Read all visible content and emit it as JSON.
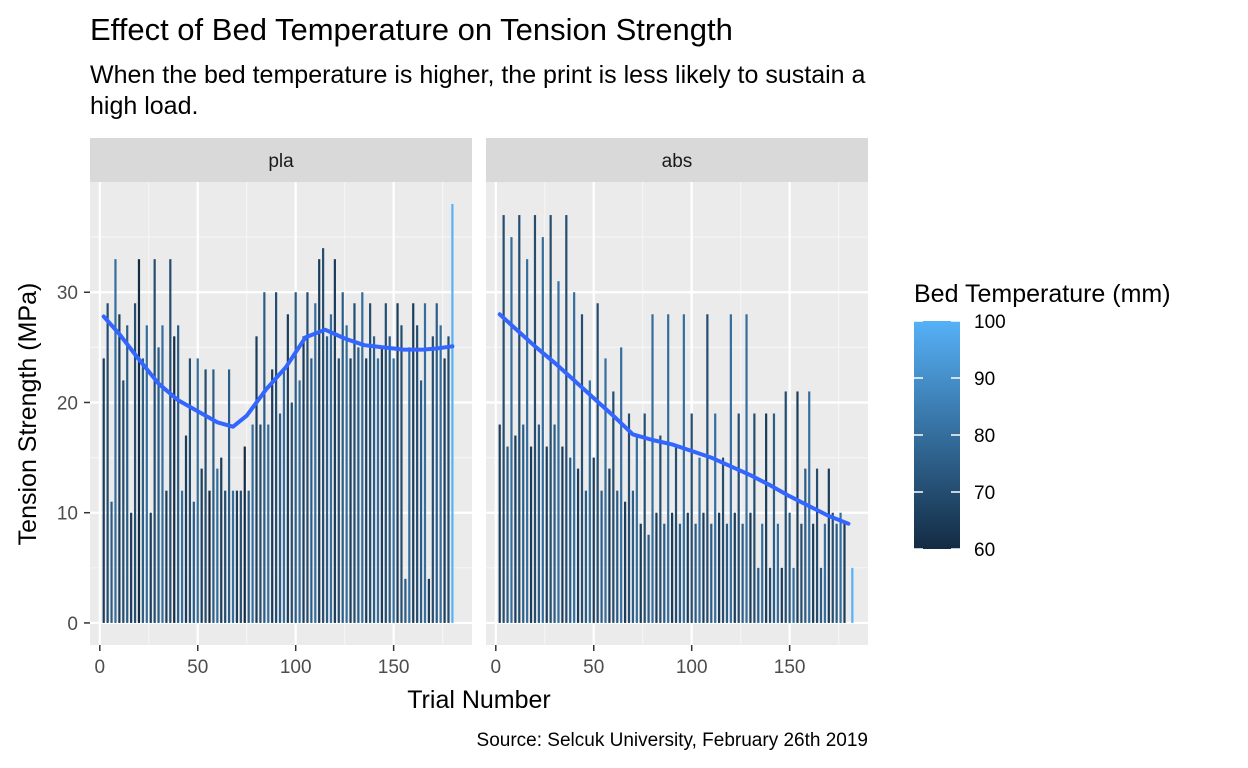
{
  "chart_data": {
    "type": "bar",
    "title": "Effect of Bed Temperature on Tension Strength",
    "subtitle": "When the bed temperature is higher, the print is less likely to sustain a high load.",
    "caption": "Source: Selcuk University, February 26th 2019",
    "xlabel": "Trial Number",
    "ylabel": "Tension Strength (MPa)",
    "xlim": [
      -5,
      190
    ],
    "ylim": [
      -2,
      40
    ],
    "x_ticks": [
      0,
      50,
      100,
      150
    ],
    "y_ticks": [
      0,
      10,
      20,
      30
    ],
    "grid": true,
    "legend": {
      "title": "Bed Temperature (mm)",
      "placement": "right",
      "range": [
        60,
        100
      ],
      "ticks": [
        60,
        70,
        80,
        90,
        100
      ],
      "color_low": "#132B43",
      "color_high": "#56B1F7"
    },
    "smooth_color": "#3366FF",
    "panels": [
      {
        "label": "pla",
        "bars": [
          {
            "x": 2,
            "y": 24,
            "t": 65
          },
          {
            "x": 4,
            "y": 29,
            "t": 70
          },
          {
            "x": 6,
            "y": 11,
            "t": 75
          },
          {
            "x": 8,
            "y": 33,
            "t": 80
          },
          {
            "x": 10,
            "y": 28,
            "t": 65
          },
          {
            "x": 12,
            "y": 22,
            "t": 70
          },
          {
            "x": 14,
            "y": 27,
            "t": 75
          },
          {
            "x": 16,
            "y": 10,
            "t": 65
          },
          {
            "x": 18,
            "y": 29,
            "t": 70
          },
          {
            "x": 20,
            "y": 33,
            "t": 60
          },
          {
            "x": 22,
            "y": 24,
            "t": 75
          },
          {
            "x": 24,
            "y": 27,
            "t": 80
          },
          {
            "x": 26,
            "y": 10,
            "t": 65
          },
          {
            "x": 28,
            "y": 33,
            "t": 70
          },
          {
            "x": 30,
            "y": 25,
            "t": 75
          },
          {
            "x": 32,
            "y": 27,
            "t": 80
          },
          {
            "x": 34,
            "y": 12,
            "t": 65
          },
          {
            "x": 36,
            "y": 33,
            "t": 70
          },
          {
            "x": 38,
            "y": 26,
            "t": 60
          },
          {
            "x": 40,
            "y": 27,
            "t": 75
          },
          {
            "x": 42,
            "y": 12,
            "t": 80
          },
          {
            "x": 44,
            "y": 17,
            "t": 65
          },
          {
            "x": 46,
            "y": 24,
            "t": 70
          },
          {
            "x": 48,
            "y": 11,
            "t": 75
          },
          {
            "x": 50,
            "y": 24,
            "t": 80
          },
          {
            "x": 52,
            "y": 14,
            "t": 65
          },
          {
            "x": 54,
            "y": 23,
            "t": 70
          },
          {
            "x": 56,
            "y": 12,
            "t": 60
          },
          {
            "x": 58,
            "y": 23,
            "t": 75
          },
          {
            "x": 60,
            "y": 14,
            "t": 80
          },
          {
            "x": 62,
            "y": 15,
            "t": 65
          },
          {
            "x": 64,
            "y": 12,
            "t": 70
          },
          {
            "x": 66,
            "y": 23,
            "t": 75
          },
          {
            "x": 68,
            "y": 12,
            "t": 80
          },
          {
            "x": 70,
            "y": 12,
            "t": 65
          },
          {
            "x": 72,
            "y": 12,
            "t": 70
          },
          {
            "x": 74,
            "y": 16,
            "t": 60
          },
          {
            "x": 76,
            "y": 12,
            "t": 75
          },
          {
            "x": 78,
            "y": 18,
            "t": 80
          },
          {
            "x": 80,
            "y": 26,
            "t": 65
          },
          {
            "x": 82,
            "y": 18,
            "t": 70
          },
          {
            "x": 84,
            "y": 30,
            "t": 75
          },
          {
            "x": 86,
            "y": 18,
            "t": 80
          },
          {
            "x": 88,
            "y": 23,
            "t": 65
          },
          {
            "x": 90,
            "y": 30,
            "t": 70
          },
          {
            "x": 92,
            "y": 19,
            "t": 75
          },
          {
            "x": 94,
            "y": 23,
            "t": 80
          },
          {
            "x": 96,
            "y": 28,
            "t": 65
          },
          {
            "x": 98,
            "y": 20,
            "t": 70
          },
          {
            "x": 100,
            "y": 30,
            "t": 75
          },
          {
            "x": 102,
            "y": 22,
            "t": 80
          },
          {
            "x": 104,
            "y": 26,
            "t": 65
          },
          {
            "x": 106,
            "y": 30,
            "t": 70
          },
          {
            "x": 108,
            "y": 24,
            "t": 75
          },
          {
            "x": 110,
            "y": 29,
            "t": 80
          },
          {
            "x": 112,
            "y": 33,
            "t": 65
          },
          {
            "x": 114,
            "y": 34,
            "t": 70
          },
          {
            "x": 116,
            "y": 26,
            "t": 75
          },
          {
            "x": 118,
            "y": 28,
            "t": 80
          },
          {
            "x": 120,
            "y": 33,
            "t": 65
          },
          {
            "x": 122,
            "y": 24,
            "t": 70
          },
          {
            "x": 124,
            "y": 30,
            "t": 75
          },
          {
            "x": 126,
            "y": 27,
            "t": 80
          },
          {
            "x": 128,
            "y": 24,
            "t": 65
          },
          {
            "x": 130,
            "y": 29,
            "t": 70
          },
          {
            "x": 132,
            "y": 25,
            "t": 75
          },
          {
            "x": 134,
            "y": 30,
            "t": 80
          },
          {
            "x": 136,
            "y": 24,
            "t": 65
          },
          {
            "x": 138,
            "y": 29,
            "t": 70
          },
          {
            "x": 140,
            "y": 26,
            "t": 75
          },
          {
            "x": 142,
            "y": 24,
            "t": 80
          },
          {
            "x": 144,
            "y": 25,
            "t": 65
          },
          {
            "x": 146,
            "y": 29,
            "t": 70
          },
          {
            "x": 148,
            "y": 26,
            "t": 75
          },
          {
            "x": 150,
            "y": 24,
            "t": 80
          },
          {
            "x": 152,
            "y": 29,
            "t": 65
          },
          {
            "x": 154,
            "y": 27,
            "t": 70
          },
          {
            "x": 156,
            "y": 4,
            "t": 75
          },
          {
            "x": 158,
            "y": 25,
            "t": 80
          },
          {
            "x": 160,
            "y": 29,
            "t": 65
          },
          {
            "x": 162,
            "y": 27,
            "t": 70
          },
          {
            "x": 164,
            "y": 22,
            "t": 75
          },
          {
            "x": 166,
            "y": 29,
            "t": 80
          },
          {
            "x": 168,
            "y": 4,
            "t": 65
          },
          {
            "x": 170,
            "y": 26,
            "t": 70
          },
          {
            "x": 172,
            "y": 29,
            "t": 75
          },
          {
            "x": 174,
            "y": 27,
            "t": 80
          },
          {
            "x": 176,
            "y": 24,
            "t": 65
          },
          {
            "x": 178,
            "y": 26,
            "t": 70
          },
          {
            "x": 180,
            "y": 38,
            "t": 100
          }
        ],
        "smooth": [
          {
            "x": 2,
            "y": 27.8
          },
          {
            "x": 10,
            "y": 26.2
          },
          {
            "x": 20,
            "y": 23.9
          },
          {
            "x": 30,
            "y": 21.7
          },
          {
            "x": 40,
            "y": 20.2
          },
          {
            "x": 50,
            "y": 19.2
          },
          {
            "x": 60,
            "y": 18.2
          },
          {
            "x": 68,
            "y": 17.8
          },
          {
            "x": 75,
            "y": 18.8
          },
          {
            "x": 85,
            "y": 21.2
          },
          {
            "x": 95,
            "y": 23.2
          },
          {
            "x": 105,
            "y": 25.9
          },
          {
            "x": 115,
            "y": 26.6
          },
          {
            "x": 125,
            "y": 25.8
          },
          {
            "x": 135,
            "y": 25.2
          },
          {
            "x": 145,
            "y": 25.0
          },
          {
            "x": 155,
            "y": 24.8
          },
          {
            "x": 165,
            "y": 24.8
          },
          {
            "x": 172,
            "y": 24.9
          },
          {
            "x": 180,
            "y": 25.1
          }
        ]
      },
      {
        "label": "abs",
        "bars": [
          {
            "x": 2,
            "y": 18,
            "t": 65
          },
          {
            "x": 4,
            "y": 37,
            "t": 70
          },
          {
            "x": 6,
            "y": 16,
            "t": 75
          },
          {
            "x": 8,
            "y": 35,
            "t": 80
          },
          {
            "x": 10,
            "y": 17,
            "t": 65
          },
          {
            "x": 12,
            "y": 37,
            "t": 70
          },
          {
            "x": 14,
            "y": 18,
            "t": 75
          },
          {
            "x": 16,
            "y": 33,
            "t": 80
          },
          {
            "x": 18,
            "y": 16,
            "t": 65
          },
          {
            "x": 20,
            "y": 37,
            "t": 70
          },
          {
            "x": 22,
            "y": 18,
            "t": 75
          },
          {
            "x": 24,
            "y": 35,
            "t": 80
          },
          {
            "x": 26,
            "y": 16,
            "t": 65
          },
          {
            "x": 28,
            "y": 37,
            "t": 70
          },
          {
            "x": 30,
            "y": 18,
            "t": 75
          },
          {
            "x": 32,
            "y": 31,
            "t": 80
          },
          {
            "x": 34,
            "y": 16,
            "t": 65
          },
          {
            "x": 36,
            "y": 37,
            "t": 70
          },
          {
            "x": 38,
            "y": 15,
            "t": 75
          },
          {
            "x": 40,
            "y": 30,
            "t": 80
          },
          {
            "x": 42,
            "y": 14,
            "t": 65
          },
          {
            "x": 44,
            "y": 28,
            "t": 70
          },
          {
            "x": 46,
            "y": 12,
            "t": 75
          },
          {
            "x": 48,
            "y": 22,
            "t": 80
          },
          {
            "x": 50,
            "y": 15,
            "t": 65
          },
          {
            "x": 52,
            "y": 29,
            "t": 70
          },
          {
            "x": 54,
            "y": 12,
            "t": 75
          },
          {
            "x": 56,
            "y": 24,
            "t": 80
          },
          {
            "x": 58,
            "y": 14,
            "t": 65
          },
          {
            "x": 60,
            "y": 21,
            "t": 70
          },
          {
            "x": 62,
            "y": 12,
            "t": 75
          },
          {
            "x": 64,
            "y": 25,
            "t": 80
          },
          {
            "x": 66,
            "y": 11,
            "t": 65
          },
          {
            "x": 68,
            "y": 19,
            "t": 70
          },
          {
            "x": 70,
            "y": 12,
            "t": 75
          },
          {
            "x": 72,
            "y": 17,
            "t": 80
          },
          {
            "x": 74,
            "y": 9,
            "t": 65
          },
          {
            "x": 76,
            "y": 19,
            "t": 70
          },
          {
            "x": 78,
            "y": 8,
            "t": 75
          },
          {
            "x": 80,
            "y": 28,
            "t": 80
          },
          {
            "x": 82,
            "y": 10,
            "t": 65
          },
          {
            "x": 84,
            "y": 17,
            "t": 70
          },
          {
            "x": 86,
            "y": 9,
            "t": 75
          },
          {
            "x": 88,
            "y": 28,
            "t": 80
          },
          {
            "x": 90,
            "y": 10,
            "t": 65
          },
          {
            "x": 92,
            "y": 16,
            "t": 70
          },
          {
            "x": 94,
            "y": 9,
            "t": 75
          },
          {
            "x": 96,
            "y": 28,
            "t": 80
          },
          {
            "x": 98,
            "y": 10,
            "t": 65
          },
          {
            "x": 100,
            "y": 19,
            "t": 70
          },
          {
            "x": 102,
            "y": 9,
            "t": 75
          },
          {
            "x": 104,
            "y": 15,
            "t": 80
          },
          {
            "x": 106,
            "y": 10,
            "t": 65
          },
          {
            "x": 108,
            "y": 28,
            "t": 70
          },
          {
            "x": 110,
            "y": 9,
            "t": 75
          },
          {
            "x": 112,
            "y": 19,
            "t": 80
          },
          {
            "x": 114,
            "y": 10,
            "t": 65
          },
          {
            "x": 116,
            "y": 15,
            "t": 70
          },
          {
            "x": 118,
            "y": 9,
            "t": 75
          },
          {
            "x": 120,
            "y": 28,
            "t": 80
          },
          {
            "x": 122,
            "y": 10,
            "t": 65
          },
          {
            "x": 124,
            "y": 19,
            "t": 70
          },
          {
            "x": 126,
            "y": 9,
            "t": 75
          },
          {
            "x": 128,
            "y": 28,
            "t": 80
          },
          {
            "x": 130,
            "y": 10,
            "t": 65
          },
          {
            "x": 132,
            "y": 19,
            "t": 70
          },
          {
            "x": 134,
            "y": 5,
            "t": 75
          },
          {
            "x": 136,
            "y": 9,
            "t": 80
          },
          {
            "x": 138,
            "y": 19,
            "t": 65
          },
          {
            "x": 140,
            "y": 5,
            "t": 70
          },
          {
            "x": 142,
            "y": 19,
            "t": 75
          },
          {
            "x": 144,
            "y": 9,
            "t": 80
          },
          {
            "x": 146,
            "y": 5,
            "t": 65
          },
          {
            "x": 148,
            "y": 21,
            "t": 70
          },
          {
            "x": 150,
            "y": 10,
            "t": 75
          },
          {
            "x": 152,
            "y": 5,
            "t": 80
          },
          {
            "x": 154,
            "y": 21,
            "t": 65
          },
          {
            "x": 156,
            "y": 9,
            "t": 70
          },
          {
            "x": 158,
            "y": 14,
            "t": 75
          },
          {
            "x": 160,
            "y": 21,
            "t": 80
          },
          {
            "x": 162,
            "y": 9,
            "t": 65
          },
          {
            "x": 164,
            "y": 14,
            "t": 70
          },
          {
            "x": 166,
            "y": 5,
            "t": 75
          },
          {
            "x": 168,
            "y": 9,
            "t": 80
          },
          {
            "x": 170,
            "y": 14,
            "t": 65
          },
          {
            "x": 172,
            "y": 10,
            "t": 70
          },
          {
            "x": 174,
            "y": 9,
            "t": 75
          },
          {
            "x": 176,
            "y": 10,
            "t": 80
          },
          {
            "x": 178,
            "y": 9,
            "t": 65
          },
          {
            "x": 182,
            "y": 5,
            "t": 100
          }
        ],
        "smooth": [
          {
            "x": 2,
            "y": 28.0
          },
          {
            "x": 10,
            "y": 26.7
          },
          {
            "x": 20,
            "y": 25.1
          },
          {
            "x": 30,
            "y": 23.6
          },
          {
            "x": 40,
            "y": 22.0
          },
          {
            "x": 50,
            "y": 20.4
          },
          {
            "x": 60,
            "y": 18.8
          },
          {
            "x": 70,
            "y": 17.1
          },
          {
            "x": 80,
            "y": 16.6
          },
          {
            "x": 90,
            "y": 16.2
          },
          {
            "x": 100,
            "y": 15.6
          },
          {
            "x": 110,
            "y": 15.0
          },
          {
            "x": 120,
            "y": 14.2
          },
          {
            "x": 130,
            "y": 13.4
          },
          {
            "x": 140,
            "y": 12.5
          },
          {
            "x": 150,
            "y": 11.5
          },
          {
            "x": 160,
            "y": 10.6
          },
          {
            "x": 170,
            "y": 9.7
          },
          {
            "x": 180,
            "y": 9.0
          }
        ]
      }
    ]
  }
}
